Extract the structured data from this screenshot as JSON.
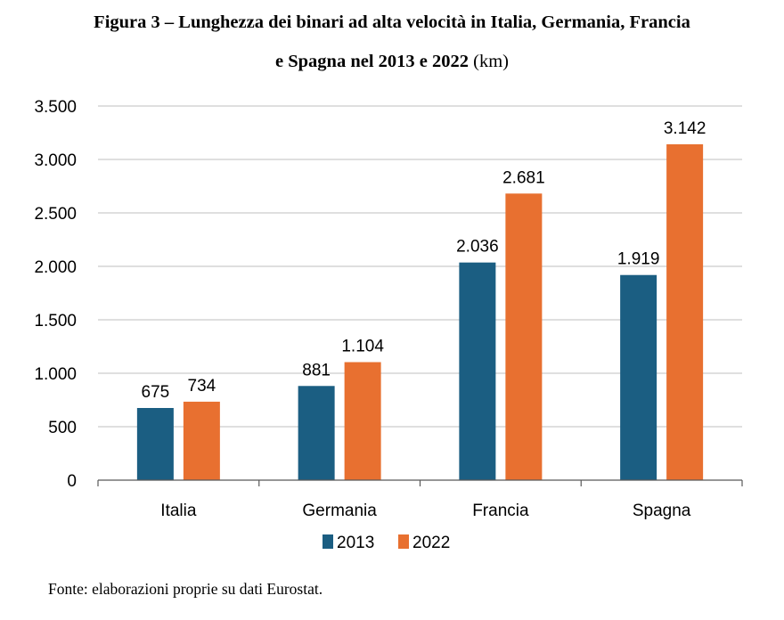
{
  "title_line1": "Figura 3 – Lunghezza dei binari ad alta velocità in Italia, Germania, Francia",
  "title_line2_bold": "e Spagna nel 2013 e 2022",
  "title_line2_unit": " (km)",
  "source": "Fonte: elaborazioni proprie su dati Eurostat.",
  "chart_data": {
    "type": "bar",
    "title": "Figura 3 – Lunghezza dei binari ad alta velocità in Italia, Germania, Francia e Spagna nel 2013 e 2022 (km)",
    "xlabel": "",
    "ylabel": "",
    "unit": "km",
    "categories": [
      "Italia",
      "Germania",
      "Francia",
      "Spagna"
    ],
    "series": [
      {
        "name": "2013",
        "color": "#1B5E82",
        "values": [
          675,
          881,
          2036,
          1919
        ],
        "labels": [
          "675",
          "881",
          "2.036",
          "1.919"
        ]
      },
      {
        "name": "2022",
        "color": "#E87030",
        "values": [
          734,
          1104,
          2681,
          3142
        ],
        "labels": [
          "734",
          "1.104",
          "2.681",
          "3.142"
        ]
      }
    ],
    "ylim": [
      0,
      3500
    ],
    "yticks": [
      0,
      500,
      1000,
      1500,
      2000,
      2500,
      3000,
      3500
    ],
    "ytick_labels": [
      "0",
      "500",
      "1.000",
      "1.500",
      "2.000",
      "2.500",
      "3.000",
      "3.500"
    ],
    "grid": true,
    "legend_position": "bottom"
  }
}
